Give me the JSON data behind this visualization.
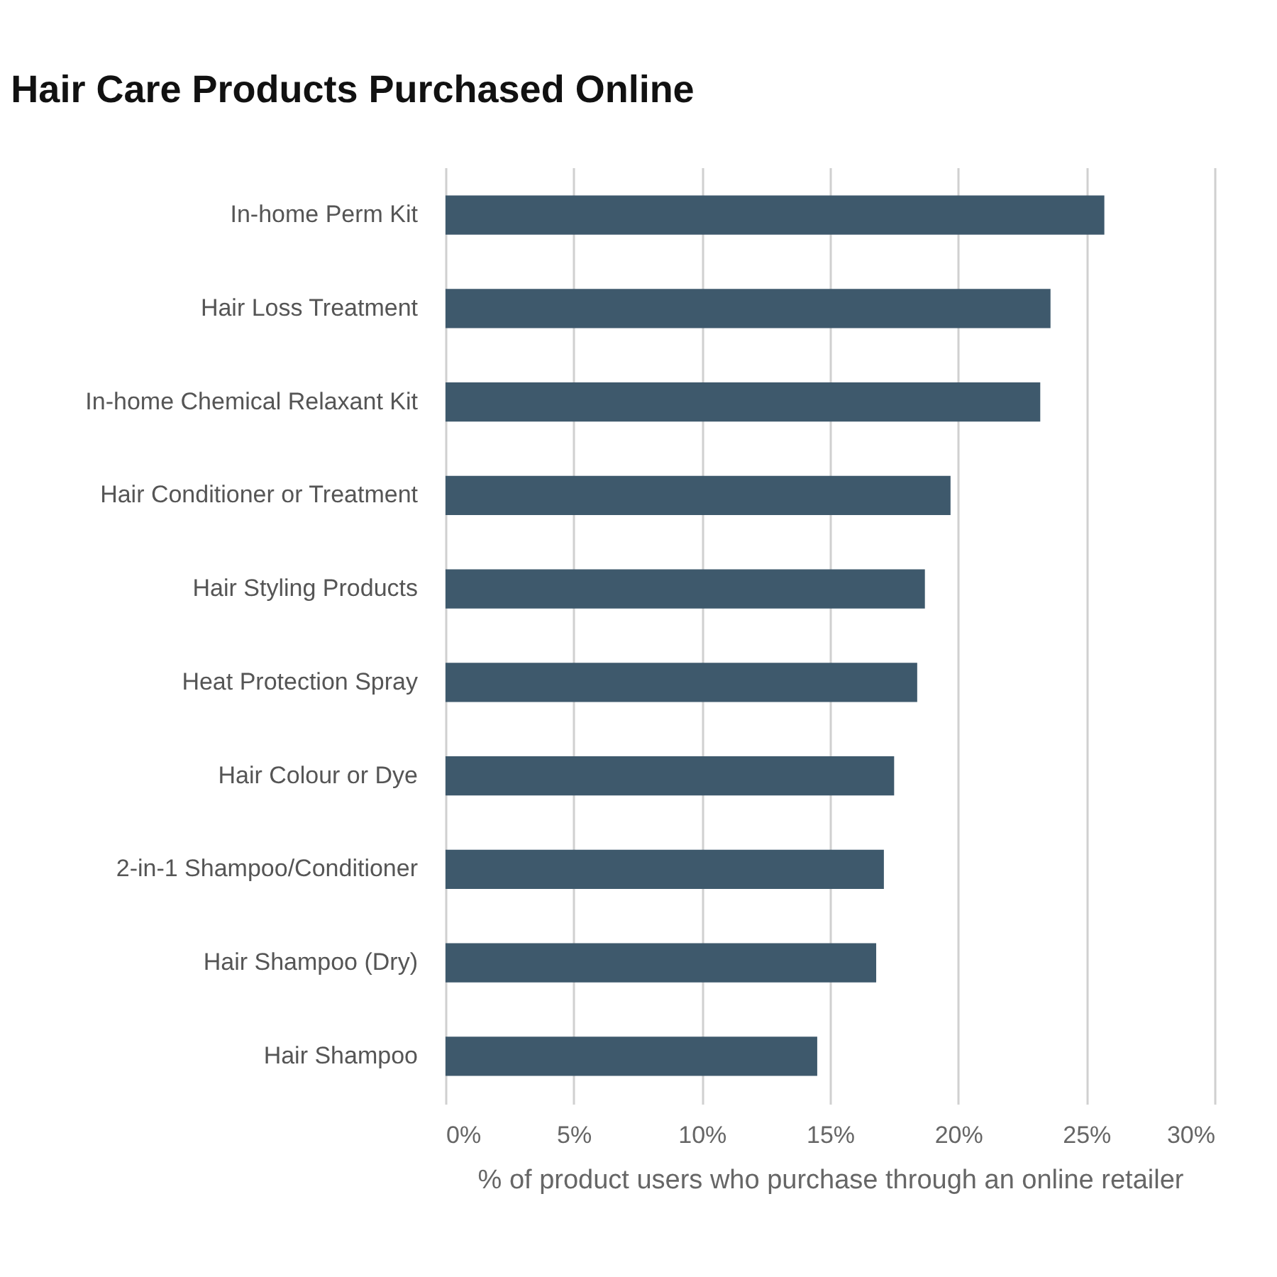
{
  "chart_data": {
    "type": "bar",
    "orientation": "horizontal",
    "title": "Hair Care Products Purchased Online",
    "xlabel": "% of product users who purchase through an online retailer",
    "categories": [
      "In-home Perm Kit",
      "Hair Loss Treatment",
      "In-home Chemical Relaxant Kit",
      "Hair Conditioner or Treatment",
      "Hair Styling Products",
      "Heat Protection Spray",
      "Hair Colour or Dye",
      "2-in-1 Shampoo/Conditioner",
      "Hair Shampoo (Dry)",
      "Hair Shampoo"
    ],
    "values": [
      25.7,
      23.6,
      23.2,
      19.7,
      18.7,
      18.4,
      17.5,
      17.1,
      16.8,
      14.5
    ],
    "color": "#3e596c",
    "xlim": [
      0,
      30
    ],
    "xticks": [
      {
        "value": 0,
        "label": "0%"
      },
      {
        "value": 5,
        "label": "5%"
      },
      {
        "value": 10,
        "label": "10%"
      },
      {
        "value": 15,
        "label": "15%"
      },
      {
        "value": 20,
        "label": "20%"
      },
      {
        "value": 25,
        "label": "25%"
      },
      {
        "value": 30,
        "label": "30%"
      }
    ],
    "grid": "x"
  }
}
